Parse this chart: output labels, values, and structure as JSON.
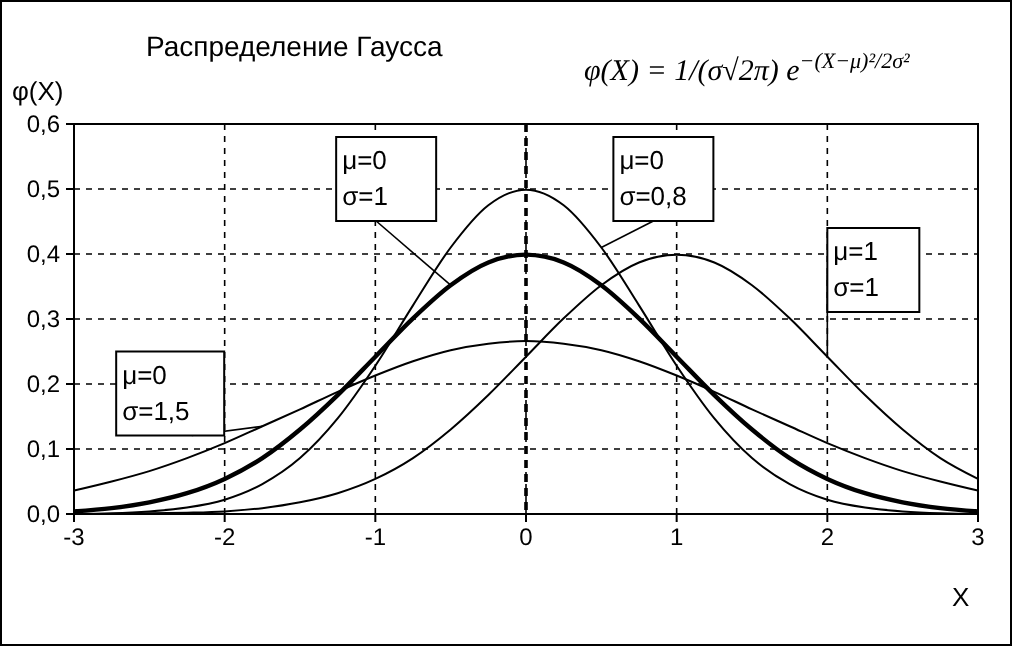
{
  "chart_data": {
    "type": "line",
    "title": "Распределение Гаусса",
    "xlabel": "X",
    "ylabel": "φ(X)",
    "annotations": [
      "φ(X) = 1/(σ√2π) e$^{−(X−μ)²/2σ²}$"
    ],
    "x": [
      -3,
      -2.75,
      -2.5,
      -2.25,
      -2,
      -1.75,
      -1.5,
      -1.25,
      -1,
      -0.75,
      -0.5,
      -0.25,
      0,
      0.25,
      0.5,
      0.75,
      1,
      1.25,
      1.5,
      1.75,
      2,
      2.25,
      2.5,
      2.75,
      3
    ],
    "series": [
      {
        "name": "μ=0 σ=1,5",
        "color": "#000000",
        "values": [
          0.036,
          0.05,
          0.066,
          0.086,
          0.109,
          0.135,
          0.161,
          0.188,
          0.213,
          0.235,
          0.252,
          0.262,
          0.266,
          0.262,
          0.252,
          0.235,
          0.213,
          0.188,
          0.161,
          0.135,
          0.109,
          0.086,
          0.066,
          0.05,
          0.036
        ]
      },
      {
        "name": "μ=0 σ=1",
        "color": "#000000",
        "values": [
          0.004,
          0.009,
          0.018,
          0.032,
          0.054,
          0.086,
          0.13,
          0.183,
          0.242,
          0.301,
          0.352,
          0.387,
          0.399,
          0.387,
          0.352,
          0.301,
          0.242,
          0.183,
          0.13,
          0.086,
          0.054,
          0.032,
          0.018,
          0.009,
          0.004
        ]
      },
      {
        "name": "μ=0 σ=0,8",
        "color": "#000000",
        "values": [
          0.0,
          0.001,
          0.004,
          0.01,
          0.022,
          0.046,
          0.086,
          0.147,
          0.228,
          0.321,
          0.41,
          0.475,
          0.499,
          0.475,
          0.41,
          0.321,
          0.228,
          0.147,
          0.086,
          0.046,
          0.022,
          0.01,
          0.004,
          0.001,
          0.0
        ]
      },
      {
        "name": "μ=1 σ=1",
        "color": "#000000",
        "values": [
          0.0,
          0.0,
          0.001,
          0.002,
          0.004,
          0.009,
          0.018,
          0.032,
          0.054,
          0.086,
          0.13,
          0.183,
          0.242,
          0.301,
          0.352,
          0.387,
          0.399,
          0.387,
          0.352,
          0.301,
          0.242,
          0.183,
          0.13,
          0.086,
          0.054
        ]
      }
    ],
    "xlim": [
      -3,
      3
    ],
    "xticks": [
      -3,
      -2,
      -1,
      0,
      1,
      2,
      3
    ],
    "ylim": [
      0,
      0.6
    ],
    "yticks": [
      {
        "value": 0,
        "label": "0,0"
      },
      {
        "value": 0.1,
        "label": "0,1"
      },
      {
        "value": 0.2,
        "label": "0,2"
      },
      {
        "value": 0.3,
        "label": "0,3"
      },
      {
        "value": 0.4,
        "label": "0,4"
      },
      {
        "value": 0.5,
        "label": "0,5"
      },
      {
        "value": 0.6,
        "label": "0,6"
      }
    ],
    "ref_lines": [
      {
        "axis": "x",
        "value": 0,
        "line_style": "dashed",
        "color": "#000000"
      }
    ],
    "grid": true,
    "legend": false,
    "marker": "none",
    "line_style": "solid"
  }
}
